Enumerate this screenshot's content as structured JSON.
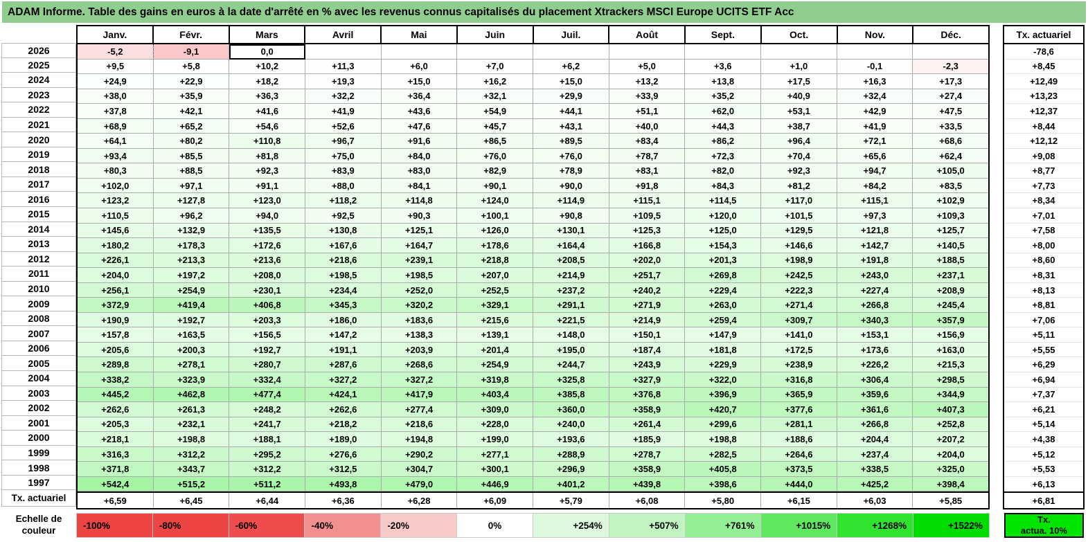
{
  "title": "ADAM Informe. Table des gains en euros à la date d'arrêté en % avec les revenus connus capitalisés du placement Xtrackers MSCI Europe UCITS ETF Acc",
  "colors": {
    "title_bg": "#8FCE8F",
    "grid_line": "#A9ABAD",
    "positive_max": "#00E100",
    "negative_max": "#F04B4B",
    "legend_tx_bg": "#00E400"
  },
  "table": {
    "columns": [
      "Janv.",
      "Févr.",
      "Mars",
      "Avril",
      "Mai",
      "Juin",
      "Juil.",
      "Août",
      "Sept.",
      "Oct.",
      "Nov.",
      "Déc."
    ],
    "right_column_header": "Tx. actuariel",
    "active_cell": {
      "row": 0,
      "col": 2
    },
    "dotted_divider": {
      "row": 0,
      "after_col": 0
    },
    "rows": [
      {
        "label": "2026",
        "values": [
          "-5,2",
          "-9,1",
          "0,0",
          "",
          "",
          "",
          "",
          "",
          "",
          "",
          "",
          ""
        ],
        "tx": "-78,6"
      },
      {
        "label": "2025",
        "values": [
          "+9,5",
          "+5,8",
          "+10,2",
          "+11,3",
          "+6,0",
          "+7,0",
          "+6,2",
          "+5,0",
          "+3,6",
          "+1,0",
          "-0,1",
          "-2,3"
        ],
        "tx": "+8,45"
      },
      {
        "label": "2024",
        "values": [
          "+24,9",
          "+22,9",
          "+18,2",
          "+19,3",
          "+15,0",
          "+16,2",
          "+15,0",
          "+13,2",
          "+13,8",
          "+17,5",
          "+16,3",
          "+17,3"
        ],
        "tx": "+12,49"
      },
      {
        "label": "2023",
        "values": [
          "+38,0",
          "+35,9",
          "+36,3",
          "+32,2",
          "+36,4",
          "+32,1",
          "+29,9",
          "+33,9",
          "+35,2",
          "+40,9",
          "+32,4",
          "+27,4"
        ],
        "tx": "+13,23"
      },
      {
        "label": "2022",
        "values": [
          "+37,8",
          "+42,1",
          "+41,6",
          "+41,9",
          "+43,6",
          "+54,9",
          "+44,1",
          "+51,1",
          "+62,0",
          "+53,1",
          "+42,9",
          "+47,5"
        ],
        "tx": "+12,37"
      },
      {
        "label": "2021",
        "values": [
          "+68,9",
          "+65,2",
          "+54,6",
          "+52,6",
          "+47,6",
          "+45,7",
          "+43,1",
          "+40,0",
          "+44,3",
          "+38,7",
          "+41,9",
          "+33,5"
        ],
        "tx": "+8,44"
      },
      {
        "label": "2020",
        "values": [
          "+64,1",
          "+80,2",
          "+110,8",
          "+96,7",
          "+91,6",
          "+86,5",
          "+89,5",
          "+83,4",
          "+86,2",
          "+96,4",
          "+72,1",
          "+68,6"
        ],
        "tx": "+12,12"
      },
      {
        "label": "2019",
        "values": [
          "+93,4",
          "+85,5",
          "+81,8",
          "+75,0",
          "+84,0",
          "+76,0",
          "+76,0",
          "+78,7",
          "+72,3",
          "+70,4",
          "+65,6",
          "+62,4"
        ],
        "tx": "+9,08"
      },
      {
        "label": "2018",
        "values": [
          "+80,3",
          "+88,5",
          "+92,3",
          "+83,9",
          "+83,0",
          "+82,9",
          "+78,9",
          "+83,1",
          "+82,0",
          "+92,3",
          "+94,7",
          "+105,0"
        ],
        "tx": "+8,77"
      },
      {
        "label": "2017",
        "values": [
          "+102,0",
          "+97,1",
          "+91,1",
          "+88,0",
          "+84,1",
          "+90,1",
          "+90,0",
          "+91,8",
          "+84,3",
          "+81,2",
          "+84,2",
          "+83,5"
        ],
        "tx": "+7,73"
      },
      {
        "label": "2016",
        "values": [
          "+123,2",
          "+127,8",
          "+123,0",
          "+118,2",
          "+114,8",
          "+124,0",
          "+114,9",
          "+115,1",
          "+114,5",
          "+117,0",
          "+115,1",
          "+102,9"
        ],
        "tx": "+8,34"
      },
      {
        "label": "2015",
        "values": [
          "+110,5",
          "+96,2",
          "+94,0",
          "+92,5",
          "+90,3",
          "+100,1",
          "+90,8",
          "+109,5",
          "+120,0",
          "+101,5",
          "+97,3",
          "+109,3"
        ],
        "tx": "+7,01"
      },
      {
        "label": "2014",
        "values": [
          "+145,6",
          "+132,9",
          "+135,5",
          "+130,8",
          "+125,1",
          "+126,0",
          "+130,1",
          "+125,3",
          "+125,0",
          "+129,5",
          "+121,8",
          "+125,7"
        ],
        "tx": "+7,58"
      },
      {
        "label": "2013",
        "values": [
          "+180,2",
          "+178,3",
          "+172,6",
          "+167,6",
          "+164,7",
          "+178,6",
          "+164,4",
          "+166,8",
          "+154,3",
          "+146,6",
          "+142,7",
          "+140,5"
        ],
        "tx": "+8,00"
      },
      {
        "label": "2012",
        "values": [
          "+226,1",
          "+213,3",
          "+213,6",
          "+218,6",
          "+239,1",
          "+218,8",
          "+208,5",
          "+202,0",
          "+201,3",
          "+198,9",
          "+191,8",
          "+188,5"
        ],
        "tx": "+8,60"
      },
      {
        "label": "2011",
        "values": [
          "+204,0",
          "+197,2",
          "+208,0",
          "+198,5",
          "+198,5",
          "+207,0",
          "+214,9",
          "+251,7",
          "+269,8",
          "+242,5",
          "+243,0",
          "+237,1"
        ],
        "tx": "+8,31"
      },
      {
        "label": "2010",
        "values": [
          "+256,1",
          "+254,9",
          "+230,1",
          "+234,4",
          "+252,0",
          "+252,5",
          "+237,2",
          "+240,2",
          "+229,4",
          "+222,3",
          "+227,4",
          "+208,9"
        ],
        "tx": "+8,13"
      },
      {
        "label": "2009",
        "values": [
          "+372,9",
          "+419,4",
          "+406,8",
          "+345,3",
          "+320,2",
          "+329,1",
          "+291,1",
          "+271,9",
          "+263,0",
          "+271,4",
          "+266,8",
          "+245,4"
        ],
        "tx": "+8,81"
      },
      {
        "label": "2008",
        "values": [
          "+190,9",
          "+192,7",
          "+203,3",
          "+186,0",
          "+183,6",
          "+215,6",
          "+221,5",
          "+214,9",
          "+259,4",
          "+309,7",
          "+340,3",
          "+357,9"
        ],
        "tx": "+7,06"
      },
      {
        "label": "2007",
        "values": [
          "+157,8",
          "+163,5",
          "+156,5",
          "+147,2",
          "+138,3",
          "+139,1",
          "+148,0",
          "+150,1",
          "+147,9",
          "+141,0",
          "+153,1",
          "+156,9"
        ],
        "tx": "+5,11"
      },
      {
        "label": "2006",
        "values": [
          "+205,6",
          "+200,3",
          "+192,7",
          "+191,1",
          "+203,9",
          "+201,4",
          "+195,0",
          "+187,4",
          "+181,8",
          "+172,5",
          "+173,6",
          "+163,0"
        ],
        "tx": "+5,55"
      },
      {
        "label": "2005",
        "values": [
          "+289,8",
          "+278,1",
          "+280,7",
          "+287,6",
          "+268,6",
          "+254,9",
          "+244,7",
          "+243,9",
          "+229,9",
          "+238,9",
          "+226,2",
          "+215,3"
        ],
        "tx": "+6,29"
      },
      {
        "label": "2004",
        "values": [
          "+338,2",
          "+323,9",
          "+332,4",
          "+327,2",
          "+327,2",
          "+319,8",
          "+325,8",
          "+327,9",
          "+322,0",
          "+316,8",
          "+306,4",
          "+298,5"
        ],
        "tx": "+6,94"
      },
      {
        "label": "2003",
        "values": [
          "+445,2",
          "+462,8",
          "+477,4",
          "+424,1",
          "+417,9",
          "+403,4",
          "+385,8",
          "+376,8",
          "+396,9",
          "+365,9",
          "+359,6",
          "+344,9"
        ],
        "tx": "+7,37"
      },
      {
        "label": "2002",
        "values": [
          "+262,6",
          "+261,3",
          "+248,2",
          "+262,6",
          "+277,4",
          "+309,0",
          "+360,0",
          "+358,9",
          "+420,7",
          "+377,6",
          "+361,6",
          "+407,3"
        ],
        "tx": "+6,21"
      },
      {
        "label": "2001",
        "values": [
          "+205,3",
          "+232,1",
          "+241,7",
          "+218,2",
          "+218,6",
          "+228,0",
          "+240,0",
          "+261,4",
          "+299,6",
          "+281,1",
          "+266,8",
          "+252,8"
        ],
        "tx": "+5,14"
      },
      {
        "label": "2000",
        "values": [
          "+218,1",
          "+198,8",
          "+188,1",
          "+189,0",
          "+194,8",
          "+199,0",
          "+193,6",
          "+185,9",
          "+198,8",
          "+188,6",
          "+204,4",
          "+207,2"
        ],
        "tx": "+4,38"
      },
      {
        "label": "1999",
        "values": [
          "+316,3",
          "+312,2",
          "+295,2",
          "+276,6",
          "+290,2",
          "+277,1",
          "+288,9",
          "+278,7",
          "+282,5",
          "+264,6",
          "+237,4",
          "+204,0"
        ],
        "tx": "+5,12"
      },
      {
        "label": "1998",
        "values": [
          "+371,8",
          "+343,7",
          "+312,2",
          "+312,5",
          "+304,7",
          "+300,1",
          "+296,9",
          "+358,9",
          "+405,8",
          "+373,5",
          "+338,5",
          "+325,0"
        ],
        "tx": "+5,53"
      },
      {
        "label": "1997",
        "values": [
          "+542,4",
          "+515,2",
          "+511,2",
          "+493,8",
          "+479,0",
          "+446,9",
          "+401,2",
          "+439,8",
          "+398,6",
          "+444,0",
          "+425,2",
          "+398,4"
        ],
        "tx": "+6,13"
      }
    ],
    "footer": {
      "label": "Tx. actuariel",
      "values": [
        "+6,59",
        "+6,45",
        "+6,44",
        "+6,36",
        "+6,28",
        "+6,09",
        "+5,79",
        "+6,08",
        "+5,80",
        "+6,15",
        "+6,03",
        "+5,85"
      ],
      "tx": "+6,81"
    }
  },
  "legend": {
    "label": "Echelle de couleur",
    "label_line1": "Echelle de",
    "label_line2": "couleur",
    "cells": [
      {
        "label": "-100%",
        "color": "#ED4444",
        "align": "left"
      },
      {
        "label": "-80%",
        "color": "#ED4444",
        "align": "left"
      },
      {
        "label": "-60%",
        "color": "#EE4D4D",
        "align": "left"
      },
      {
        "label": "-40%",
        "color": "#F29090",
        "align": "left"
      },
      {
        "label": "-20%",
        "color": "#F7C9C9",
        "align": "left"
      },
      {
        "label": "0%",
        "color": "#FFFFFF",
        "align": "center"
      },
      {
        "label": "+254%",
        "color": "#DDF8DD",
        "align": "right"
      },
      {
        "label": "+507%",
        "color": "#C0F4C0",
        "align": "right"
      },
      {
        "label": "+761%",
        "color": "#93EF93",
        "align": "right"
      },
      {
        "label": "+1015%",
        "color": "#5FE85F",
        "align": "right"
      },
      {
        "label": "+1268%",
        "color": "#2FE32F",
        "align": "right"
      },
      {
        "label": "+1522%",
        "color": "#00DC00",
        "align": "right"
      }
    ],
    "tx_box_line1": "Tx.",
    "tx_box_line2": "actua. 10%"
  }
}
